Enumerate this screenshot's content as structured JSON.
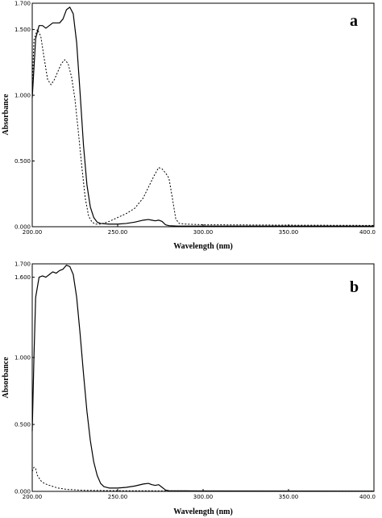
{
  "chart_data": [
    {
      "type": "line",
      "panel_label": "a",
      "xlabel": "Wavelength (nm)",
      "ylabel": "Absorbance",
      "xlim": [
        200,
        400
      ],
      "ylim": [
        0,
        1.7
      ],
      "x_ticks": [
        "200.00",
        "250.00",
        "300.00",
        "350.00",
        "400.0"
      ],
      "y_ticks": [
        "0.000",
        "0.500",
        "1.000",
        "1.500",
        "1.700"
      ],
      "grid": false,
      "series": [
        {
          "style": "solid",
          "color": "#000000",
          "points": [
            [
              200,
              0.98
            ],
            [
              202,
              1.43
            ],
            [
              204,
              1.53
            ],
            [
              206,
              1.53
            ],
            [
              208,
              1.51
            ],
            [
              210,
              1.53
            ],
            [
              212,
              1.55
            ],
            [
              214,
              1.55
            ],
            [
              216,
              1.55
            ],
            [
              218,
              1.58
            ],
            [
              220,
              1.65
            ],
            [
              222,
              1.67
            ],
            [
              224,
              1.62
            ],
            [
              226,
              1.4
            ],
            [
              228,
              1.02
            ],
            [
              230,
              0.62
            ],
            [
              232,
              0.32
            ],
            [
              234,
              0.15
            ],
            [
              236,
              0.07
            ],
            [
              238,
              0.035
            ],
            [
              240,
              0.025
            ],
            [
              245,
              0.02
            ],
            [
              250,
              0.02
            ],
            [
              255,
              0.025
            ],
            [
              260,
              0.035
            ],
            [
              265,
              0.05
            ],
            [
              268,
              0.055
            ],
            [
              270,
              0.05
            ],
            [
              272,
              0.045
            ],
            [
              274,
              0.05
            ],
            [
              276,
              0.04
            ],
            [
              278,
              0.015
            ],
            [
              280,
              0.008
            ],
            [
              285,
              0.005
            ],
            [
              300,
              0.005
            ],
            [
              400,
              0.005
            ]
          ]
        },
        {
          "style": "dashed",
          "color": "#000000",
          "points": [
            [
              200,
              1.05
            ],
            [
              201,
              1.42
            ],
            [
              203,
              1.5
            ],
            [
              205,
              1.45
            ],
            [
              207,
              1.28
            ],
            [
              209,
              1.12
            ],
            [
              211,
              1.08
            ],
            [
              213,
              1.12
            ],
            [
              215,
              1.18
            ],
            [
              217,
              1.24
            ],
            [
              219,
              1.27
            ],
            [
              221,
              1.24
            ],
            [
              223,
              1.14
            ],
            [
              225,
              0.97
            ],
            [
              227,
              0.72
            ],
            [
              229,
              0.46
            ],
            [
              231,
              0.22
            ],
            [
              233,
              0.08
            ],
            [
              235,
              0.035
            ],
            [
              237,
              0.02
            ],
            [
              240,
              0.02
            ],
            [
              245,
              0.04
            ],
            [
              250,
              0.07
            ],
            [
              255,
              0.1
            ],
            [
              260,
              0.14
            ],
            [
              265,
              0.22
            ],
            [
              268,
              0.3
            ],
            [
              271,
              0.38
            ],
            [
              274,
              0.45
            ],
            [
              276,
              0.44
            ],
            [
              278,
              0.41
            ],
            [
              280,
              0.37
            ],
            [
              282,
              0.22
            ],
            [
              284,
              0.06
            ],
            [
              286,
              0.025
            ],
            [
              290,
              0.02
            ],
            [
              300,
              0.015
            ],
            [
              350,
              0.012
            ],
            [
              400,
              0.01
            ]
          ]
        }
      ]
    },
    {
      "type": "line",
      "panel_label": "b",
      "xlabel": "Wavelength (nm)",
      "ylabel": "Absorbance",
      "xlim": [
        200,
        400
      ],
      "ylim": [
        0,
        1.7
      ],
      "x_ticks": [
        "200.00",
        "250.00",
        "300.00",
        "350.00",
        "400.0"
      ],
      "y_ticks": [
        "0.000",
        "0.500",
        "1.000",
        "1.600",
        "1.700"
      ],
      "grid": false,
      "series": [
        {
          "style": "solid",
          "color": "#000000",
          "points": [
            [
              200,
              0.45
            ],
            [
              201,
              1.0
            ],
            [
              202,
              1.45
            ],
            [
              204,
              1.6
            ],
            [
              206,
              1.61
            ],
            [
              208,
              1.6
            ],
            [
              210,
              1.62
            ],
            [
              212,
              1.64
            ],
            [
              214,
              1.63
            ],
            [
              216,
              1.65
            ],
            [
              218,
              1.66
            ],
            [
              220,
              1.69
            ],
            [
              222,
              1.68
            ],
            [
              224,
              1.62
            ],
            [
              226,
              1.45
            ],
            [
              228,
              1.18
            ],
            [
              230,
              0.88
            ],
            [
              232,
              0.6
            ],
            [
              234,
              0.38
            ],
            [
              236,
              0.22
            ],
            [
              238,
              0.12
            ],
            [
              240,
              0.06
            ],
            [
              242,
              0.035
            ],
            [
              245,
              0.025
            ],
            [
              250,
              0.025
            ],
            [
              255,
              0.03
            ],
            [
              260,
              0.04
            ],
            [
              265,
              0.055
            ],
            [
              268,
              0.06
            ],
            [
              270,
              0.05
            ],
            [
              272,
              0.045
            ],
            [
              274,
              0.05
            ],
            [
              276,
              0.03
            ],
            [
              278,
              0.01
            ],
            [
              280,
              0.005
            ],
            [
              300,
              0.003
            ],
            [
              400,
              0.002
            ]
          ]
        },
        {
          "style": "dashed",
          "color": "#000000",
          "points": [
            [
              200,
              0.15
            ],
            [
              201,
              0.18
            ],
            [
              202,
              0.17
            ],
            [
              203,
              0.12
            ],
            [
              205,
              0.08
            ],
            [
              207,
              0.06
            ],
            [
              210,
              0.045
            ],
            [
              215,
              0.025
            ],
            [
              220,
              0.015
            ],
            [
              230,
              0.008
            ],
            [
              250,
              0.005
            ],
            [
              300,
              0.003
            ],
            [
              400,
              0.002
            ]
          ]
        }
      ]
    }
  ]
}
